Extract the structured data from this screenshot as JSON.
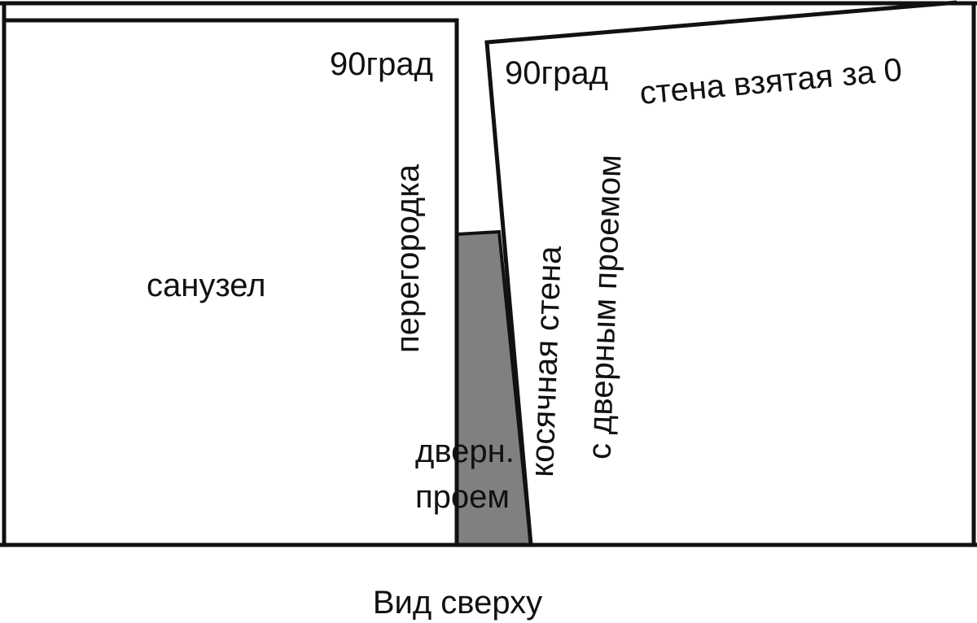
{
  "labels": {
    "angle_left": "90град",
    "angle_right": "90град",
    "reference_wall": "стена взятая за 0",
    "bathroom": "санузел",
    "partition": "перегородка",
    "skew_wall_line1": "косячная стена",
    "skew_wall_line2": "с дверным проемом",
    "door_line1": "дверн.",
    "door_line2": "проем",
    "caption": "Вид сверху"
  }
}
